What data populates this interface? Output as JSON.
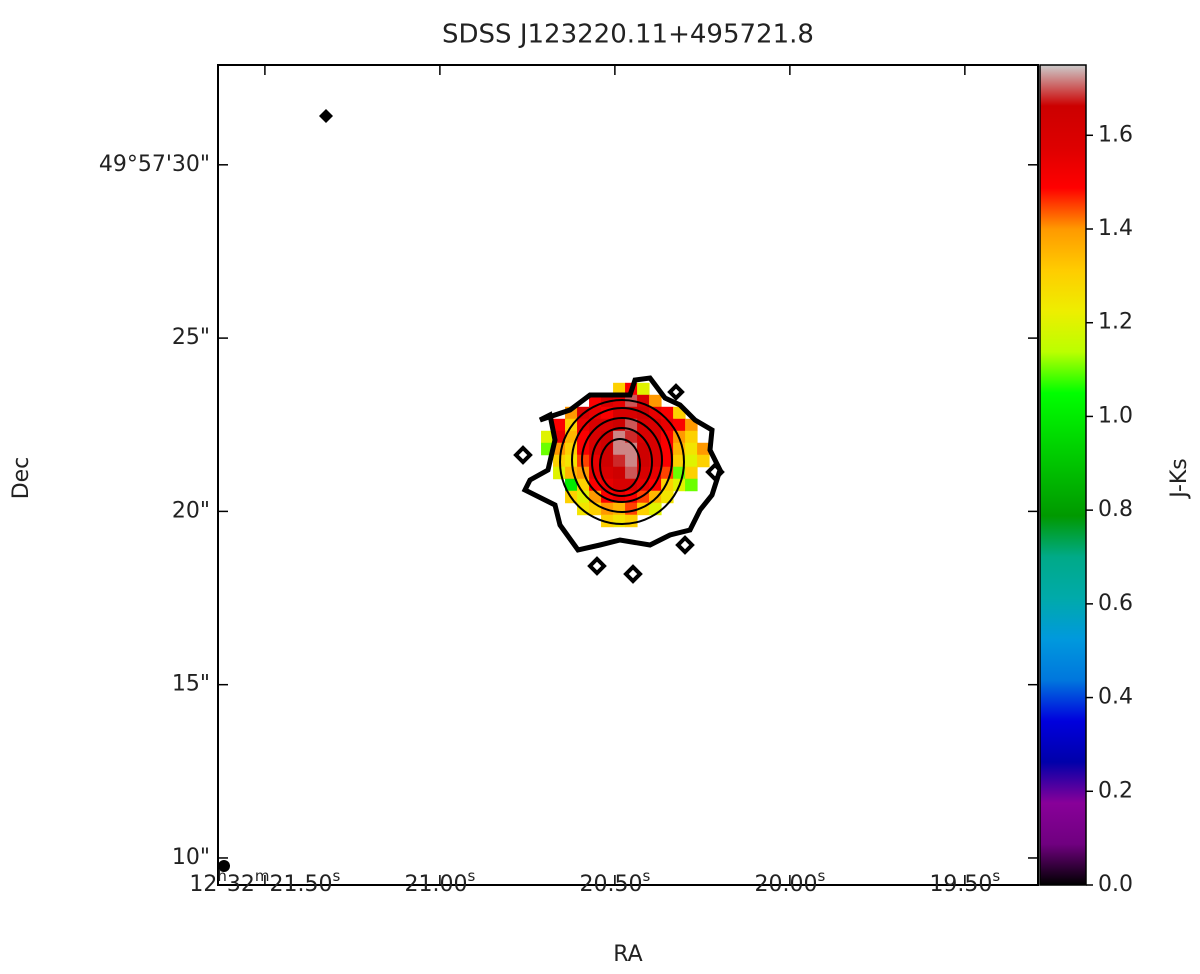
{
  "chart_data": {
    "type": "image",
    "title": "SDSS J123220.11+495721.8",
    "xlabel": "RA",
    "ylabel": "Dec",
    "colorbar_label": "J-Ks",
    "xlim": [
      21.634,
      19.291
    ],
    "ylim": [
      9.22,
      32.88
    ],
    "clim": [
      0,
      1.75
    ],
    "xticks": [
      {
        "value": 21.5,
        "label": "12h32m21.50s"
      },
      {
        "value": 21.0,
        "label": "21.00s"
      },
      {
        "value": 20.5,
        "label": "20.50s"
      },
      {
        "value": 20.0,
        "label": "20.00s"
      },
      {
        "value": 19.5,
        "label": "19.50s"
      }
    ],
    "yticks": [
      {
        "value": 30,
        "label": "49°57'30\""
      },
      {
        "value": 25,
        "label": "25\""
      },
      {
        "value": 20,
        "label": "20\""
      },
      {
        "value": 15,
        "label": "15\""
      },
      {
        "value": 10,
        "label": "10\""
      }
    ],
    "cticks": [
      {
        "value": 0,
        "label": "0.0"
      },
      {
        "value": 0.2,
        "label": "0.2"
      },
      {
        "value": 0.4,
        "label": "0.4"
      },
      {
        "value": 0.6,
        "label": "0.6"
      },
      {
        "value": 0.8,
        "label": "0.8"
      },
      {
        "value": 1.0,
        "label": "1.0"
      },
      {
        "value": 1.2,
        "label": "1.2"
      },
      {
        "value": 1.4,
        "label": "1.4"
      },
      {
        "value": 1.6,
        "label": "1.6"
      }
    ],
    "colormap": [
      [
        0,
        "#000000"
      ],
      [
        0.05,
        "#700080"
      ],
      [
        0.1,
        "#880099"
      ],
      [
        0.15,
        "#0000aa"
      ],
      [
        0.2,
        "#0000dd"
      ],
      [
        0.25,
        "#0077dd"
      ],
      [
        0.3,
        "#0099dd"
      ],
      [
        0.35,
        "#00aaaa"
      ],
      [
        0.4,
        "#00aa88"
      ],
      [
        0.45,
        "#009900"
      ],
      [
        0.5,
        "#00bb00"
      ],
      [
        0.55,
        "#00dd00"
      ],
      [
        0.6,
        "#00ff00"
      ],
      [
        0.65,
        "#bbff00"
      ],
      [
        0.7,
        "#eeee00"
      ],
      [
        0.75,
        "#ffcc00"
      ],
      [
        0.8,
        "#ff9900"
      ],
      [
        0.85,
        "#ff0000"
      ],
      [
        0.9,
        "#dd0000"
      ],
      [
        0.95,
        "#cc0000"
      ],
      [
        1,
        "#cccccc"
      ]
    ],
    "image": {
      "ra_start": 20.711,
      "dec_start": 23.71,
      "ra_step": -0.0343,
      "dec_step": -0.346,
      "values": [
        [
          null,
          null,
          null,
          null,
          null,
          null,
          1.3,
          1.5,
          1.2,
          null,
          null,
          null,
          null,
          null
        ],
        [
          null,
          null,
          null,
          null,
          1.5,
          1.6,
          1.55,
          1.7,
          1.6,
          1.4,
          null,
          null,
          null,
          null
        ],
        [
          null,
          null,
          1.4,
          1.6,
          1.55,
          1.5,
          1.6,
          1.6,
          1.65,
          1.55,
          1.5,
          1.3,
          null,
          null
        ],
        [
          null,
          1.5,
          1.3,
          1.55,
          1.6,
          1.6,
          1.65,
          1.7,
          1.6,
          1.6,
          1.55,
          1.5,
          1.4,
          null
        ],
        [
          1.2,
          1.55,
          1.35,
          1.5,
          1.6,
          1.65,
          1.72,
          1.68,
          1.6,
          1.6,
          1.5,
          1.4,
          1.3,
          null
        ],
        [
          1.1,
          1.4,
          1.3,
          1.5,
          1.6,
          1.65,
          1.72,
          1.72,
          1.65,
          1.6,
          1.5,
          1.35,
          1.25,
          1.4
        ],
        [
          null,
          1.3,
          1.25,
          1.45,
          1.55,
          1.65,
          1.68,
          1.72,
          1.65,
          1.6,
          1.5,
          1.3,
          1.2,
          1.3
        ],
        [
          null,
          1.2,
          1.35,
          1.4,
          1.55,
          1.6,
          1.65,
          1.7,
          1.6,
          1.55,
          1.45,
          1.1,
          1.3,
          null
        ],
        [
          null,
          null,
          1.0,
          1.3,
          1.5,
          1.55,
          1.6,
          1.6,
          1.55,
          1.5,
          1.3,
          1.2,
          1.1,
          null
        ],
        [
          null,
          null,
          1.3,
          1.2,
          1.4,
          1.5,
          1.55,
          1.5,
          1.45,
          1.35,
          1.25,
          null,
          null,
          null
        ],
        [
          null,
          null,
          null,
          1.25,
          1.3,
          1.4,
          1.35,
          1.45,
          1.3,
          1.2,
          null,
          null,
          null,
          null
        ],
        [
          null,
          null,
          null,
          null,
          null,
          1.3,
          1.25,
          1.3,
          null,
          null,
          null,
          null,
          null,
          null
        ]
      ]
    }
  }
}
